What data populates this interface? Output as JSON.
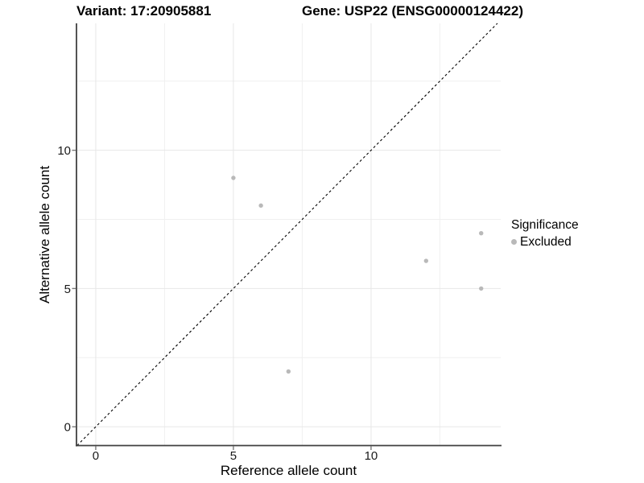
{
  "chart_data": {
    "type": "scatter",
    "title_left": "Variant: 17:20905881",
    "title_right": "Gene: USP22 (ENSG00000124422)",
    "xlabel": "Reference allele count",
    "ylabel": "Alternative allele count",
    "xlim": [
      -0.7,
      14.71
    ],
    "ylim": [
      -0.68,
      14.59
    ],
    "x_major_ticks": [
      0,
      5,
      10
    ],
    "y_major_ticks": [
      0,
      5,
      10
    ],
    "x_minor_ticks": [
      2.5,
      7.5,
      12.5
    ],
    "y_minor_ticks": [
      2.5,
      7.5,
      12.5
    ],
    "grid": true,
    "identity_line": {
      "slope": 1,
      "intercept": 0,
      "style": "dashed",
      "color": "#000000"
    },
    "series": [
      {
        "name": "Excluded",
        "color": "#b9b9b9",
        "points": [
          [
            5,
            9
          ],
          [
            6,
            8
          ],
          [
            7,
            2
          ],
          [
            12,
            6
          ],
          [
            14,
            7
          ],
          [
            14,
            5
          ]
        ]
      }
    ],
    "legend": {
      "title": "Significance",
      "position": "right",
      "items": [
        {
          "label": "Excluded",
          "color": "#b9b9b9"
        }
      ]
    }
  },
  "colors": {
    "background": "#ffffff",
    "grid_major": "#e7e7e7",
    "grid_minor": "#f0f0f0",
    "axis_line": "#404040",
    "tick_mark": "#7a7a7a",
    "tick_label": "#1a1a1a",
    "point": "#b9b9b9",
    "dashed_line": "#000000"
  }
}
